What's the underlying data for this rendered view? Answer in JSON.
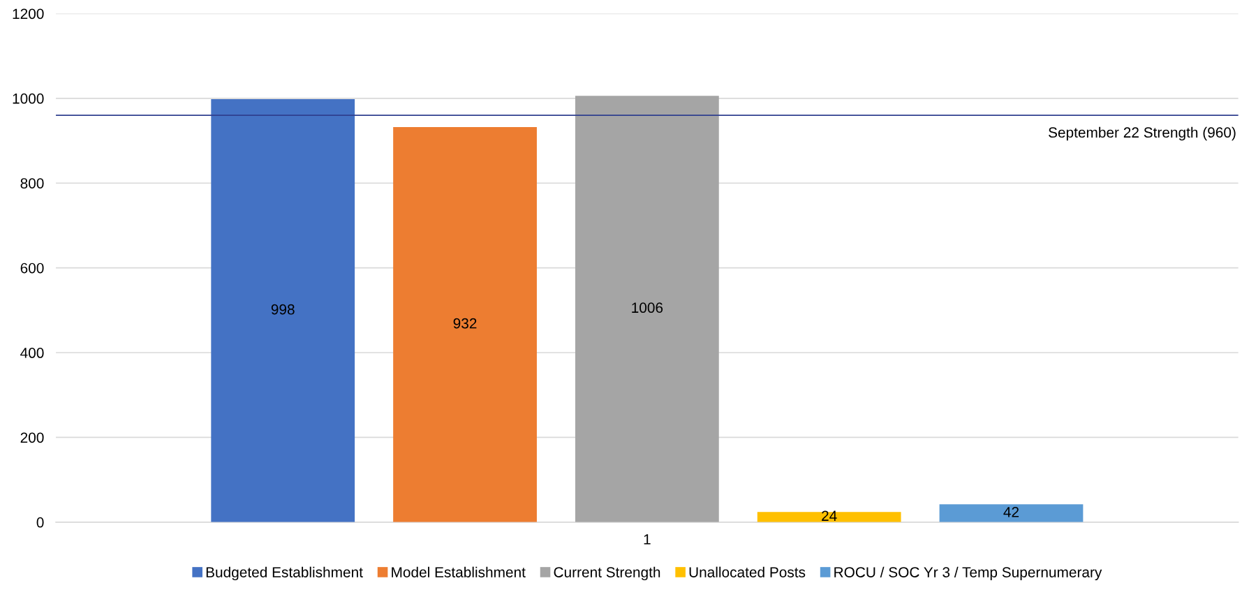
{
  "chart_data": {
    "type": "bar",
    "categories": [
      "1"
    ],
    "series": [
      {
        "name": "Budgeted Establishment",
        "color": "#4472c4",
        "values": [
          998
        ]
      },
      {
        "name": "Model Establishment",
        "color": "#ed7d31",
        "values": [
          932
        ]
      },
      {
        "name": "Current Strength",
        "color": "#a5a5a5",
        "values": [
          1006
        ]
      },
      {
        "name": "Unallocated Posts",
        "color": "#ffc000",
        "values": [
          24
        ]
      },
      {
        "name": "ROCU / SOC Yr 3 / Temp Supernumerary",
        "color": "#5b9bd5",
        "values": [
          42
        ]
      }
    ],
    "ylim": [
      0,
      1200
    ],
    "yticks": [
      0,
      200,
      400,
      600,
      800,
      1000,
      1200
    ],
    "ref_lines": [
      {
        "axis": "y",
        "value": 960,
        "label": "September 22 Strength (960)",
        "color": "#2f3f8f",
        "line_style": "solid"
      }
    ],
    "data_labels": true,
    "grid": "y",
    "legend": "bottom"
  }
}
